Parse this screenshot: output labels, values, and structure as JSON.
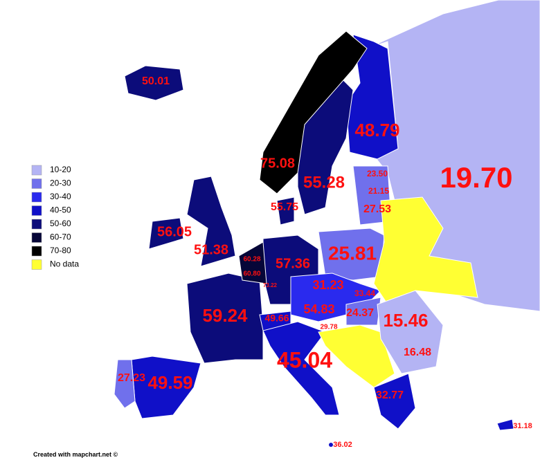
{
  "legend": [
    {
      "label": "10-20",
      "color": "#b4b4f4"
    },
    {
      "label": "20-30",
      "color": "#7070ec"
    },
    {
      "label": "30-40",
      "color": "#2a2aee"
    },
    {
      "label": "40-50",
      "color": "#1010c8"
    },
    {
      "label": "50-60",
      "color": "#0c0c7a"
    },
    {
      "label": "60-70",
      "color": "#060638"
    },
    {
      "label": "70-80",
      "color": "#000000"
    },
    {
      "label": "No data",
      "color": "#ffff33"
    }
  ],
  "labels": [
    "50.01",
    "48.79",
    "75.08",
    "55.28",
    "19.70",
    "23.50",
    "21.15",
    "27.53",
    "55.75",
    "56.05",
    "51.38",
    "60.28",
    "25.81",
    "57.36",
    "60.80",
    "73.22",
    "31.23",
    "33.44",
    "54.83",
    "24.37",
    "59.24",
    "49.66",
    "15.46",
    "29.78",
    "45.04",
    "16.48",
    "27.23",
    "49.59",
    "32.77",
    "31.18",
    "36.02"
  ],
  "credit": "Created with mapchart.net ©"
}
